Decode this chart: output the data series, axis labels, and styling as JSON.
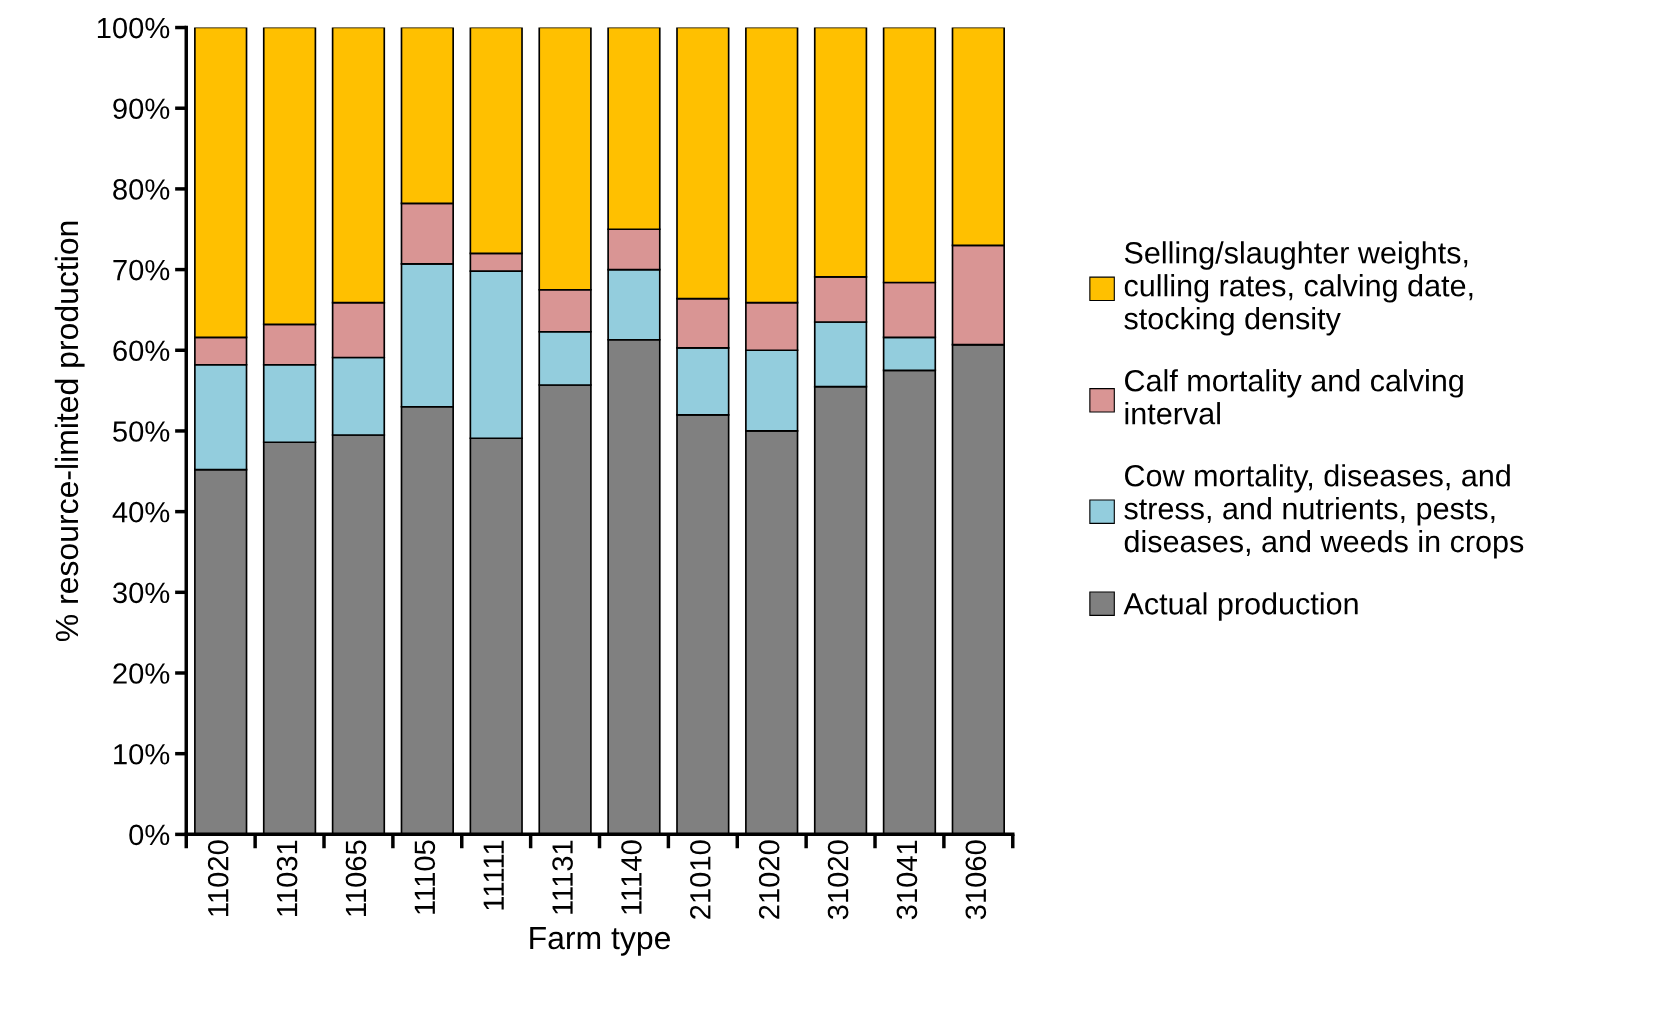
{
  "chart_data": {
    "type": "bar",
    "stacked": true,
    "xlabel": "Farm type",
    "ylabel": "% resource-limited production",
    "categories": [
      "11020",
      "11031",
      "11065",
      "11105",
      "11111",
      "11131",
      "11140",
      "21010",
      "21020",
      "31020",
      "31041",
      "31060"
    ],
    "series": [
      {
        "name": "Actual production",
        "color": "#808080",
        "values": [
          45.2,
          48.6,
          49.5,
          53.0,
          49.1,
          55.7,
          61.3,
          52.0,
          50.0,
          55.5,
          57.5,
          60.7
        ]
      },
      {
        "name": "Cow mortality, diseases, and\nstress, and nutrients, pests,\ndiseases, and weeds in crops",
        "color": "#93cddd",
        "values": [
          13.0,
          9.6,
          9.6,
          17.7,
          20.7,
          6.6,
          8.7,
          8.3,
          10.0,
          8.0,
          4.1,
          0
        ]
      },
      {
        "name": "Calf mortality and calving\ninterval",
        "color": "#d99594",
        "values": [
          3.4,
          5.0,
          6.8,
          7.5,
          2.2,
          5.2,
          5.0,
          6.1,
          5.9,
          5.6,
          6.8,
          12.3
        ]
      },
      {
        "name": "Selling/slaughter weights,\nculling rates, calving date,\nstocking density",
        "color": "#ffc000",
        "values": [
          38.4,
          36.8,
          34.1,
          21.8,
          28.0,
          32.5,
          25.0,
          33.6,
          34.1,
          30.9,
          31.6,
          27.0
        ]
      }
    ],
    "ylim": [
      0,
      100
    ],
    "yticks": [
      {
        "value": 0,
        "label": "0%"
      },
      {
        "value": 10,
        "label": "10%"
      },
      {
        "value": 20,
        "label": "20%"
      },
      {
        "value": 30,
        "label": "30%"
      },
      {
        "value": 40,
        "label": "40%"
      },
      {
        "value": 50,
        "label": "50%"
      },
      {
        "value": 60,
        "label": "60%"
      },
      {
        "value": 70,
        "label": "70%"
      },
      {
        "value": 80,
        "label": "80%"
      },
      {
        "value": 90,
        "label": "90%"
      },
      {
        "value": 100,
        "label": "100%"
      }
    ],
    "grid": false,
    "legend": "right"
  }
}
